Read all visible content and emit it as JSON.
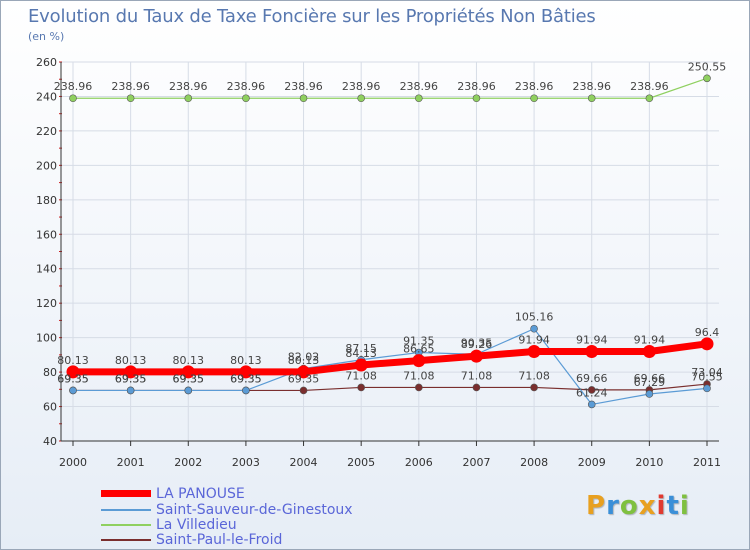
{
  "header": {
    "title": "Evolution du Taux de Taxe Foncière sur les Propriétés Non Bâties",
    "unit": "(en %)"
  },
  "logo": {
    "text": "Proxiti",
    "colors": [
      "#e8a020",
      "#3a8fd8",
      "#7fc040",
      "#e8a020",
      "#e03a30",
      "#3a8fd8",
      "#7fc040"
    ]
  },
  "chart_data": {
    "type": "line",
    "title": "Evolution du Taux de Taxe Foncière sur les Propriétés Non Bâties",
    "ylabel": "(en %)",
    "xlabel": "",
    "ylim": [
      40,
      260
    ],
    "yticks": [
      40,
      60,
      80,
      100,
      120,
      140,
      160,
      180,
      200,
      220,
      240,
      260
    ],
    "categories": [
      "2000",
      "2001",
      "2002",
      "2003",
      "2004",
      "2005",
      "2006",
      "2007",
      "2008",
      "2009",
      "2010",
      "2011"
    ],
    "grid": true,
    "legend": "bottom-left",
    "series": [
      {
        "name": "Saint-Paul-le-Froid",
        "color": "#7a2e2e",
        "values": [
          69.35,
          69.35,
          69.35,
          69.35,
          69.35,
          71.08,
          71.08,
          71.08,
          71.08,
          69.66,
          69.66,
          73.04
        ],
        "labels": [
          "69.35",
          "69.35",
          "69.35",
          "69.35",
          "69.35",
          "71.08",
          "71.08",
          "71.08",
          "71.08",
          "69.66",
          "69.66",
          "73.04"
        ]
      },
      {
        "name": "Saint-Sauveur-de-Ginestoux",
        "color": "#5b9bd5",
        "values": [
          69.35,
          69.35,
          69.35,
          69.35,
          82.02,
          87.15,
          91.35,
          90.35,
          105.16,
          61.24,
          67.29,
          70.55
        ],
        "labels": [
          "69.35",
          "69.35",
          "69.35",
          "69.35",
          "82.02",
          "87.15",
          "91.35",
          "90.35",
          "105.16",
          "61.24",
          "67.29",
          "70.55"
        ]
      },
      {
        "name": "La Villedieu",
        "color": "#8fd060",
        "values": [
          238.96,
          238.96,
          238.96,
          238.96,
          238.96,
          238.96,
          238.96,
          238.96,
          238.96,
          238.96,
          238.96,
          250.55
        ],
        "labels": [
          "238.96",
          "238.96",
          "238.96",
          "238.96",
          "238.96",
          "238.96",
          "238.96",
          "238.96",
          "238.96",
          "238.96",
          "238.96",
          "250.55"
        ]
      },
      {
        "name": "LA PANOUSE",
        "color": "#ff0000",
        "values": [
          80.13,
          80.13,
          80.13,
          80.13,
          80.13,
          84.13,
          86.65,
          89.26,
          91.94,
          91.94,
          91.94,
          96.4
        ],
        "labels": [
          "80.13",
          "80.13",
          "80.13",
          "80.13",
          "80.13",
          "84.13",
          "86.65",
          "89.26",
          "91.94",
          "91.94",
          "91.94",
          "96.4"
        ]
      }
    ],
    "legend_entries": [
      {
        "name": "LA PANOUSE",
        "color": "#ff0000",
        "thick": true
      },
      {
        "name": "Saint-Sauveur-de-Ginestoux",
        "color": "#5b9bd5",
        "thick": false
      },
      {
        "name": "La Villedieu",
        "color": "#8fd060",
        "thick": false
      },
      {
        "name": "Saint-Paul-le-Froid",
        "color": "#7a2e2e",
        "thick": false
      }
    ]
  }
}
